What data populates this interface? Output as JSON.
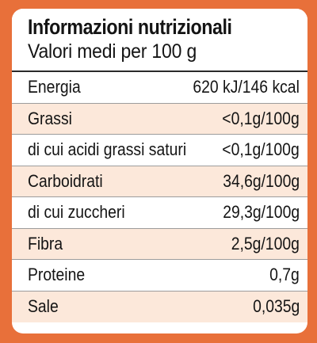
{
  "label": {
    "title": "Informazioni nutrizionali",
    "subtitle": "Valori medi per 100 g"
  },
  "colors": {
    "border": "#e8703a",
    "shaded_row": "#fce8da",
    "text": "#141414"
  },
  "rows": [
    {
      "name": "Energia",
      "value": "620 kJ/146 kcal"
    },
    {
      "name": "Grassi",
      "value": "<0,1g/100g"
    },
    {
      "name": "di cui acidi grassi saturi",
      "value": "<0,1g/100g"
    },
    {
      "name": "Carboidrati",
      "value": "34,6g/100g"
    },
    {
      "name": "di cui zuccheri",
      "value": "29,3g/100g"
    },
    {
      "name": "Fibra",
      "value": "2,5g/100g"
    },
    {
      "name": "Proteine",
      "value": "0,7g"
    },
    {
      "name": "Sale",
      "value": "0,035g"
    }
  ]
}
